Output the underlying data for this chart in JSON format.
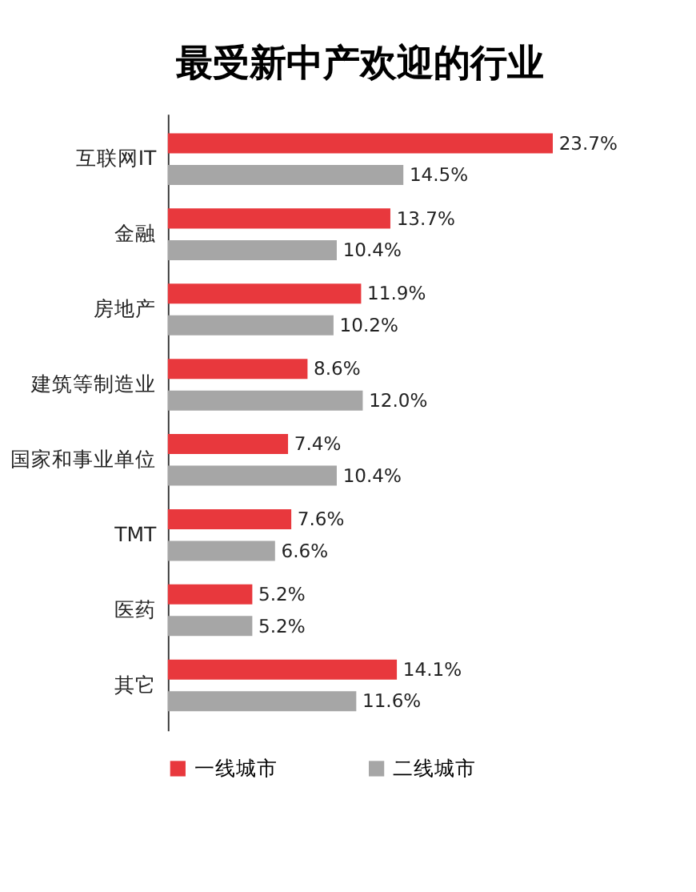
{
  "chart_data": {
    "type": "bar",
    "orientation": "horizontal",
    "title": "最受新中产欢迎的行业",
    "categories": [
      "互联网IT",
      "金融",
      "房地产",
      "建筑等制造业",
      "国家和事业单位",
      "TMT",
      "医药",
      "其它"
    ],
    "series": [
      {
        "name": "一线城市",
        "color": "#e8383d",
        "values": [
          23.7,
          13.7,
          11.9,
          8.6,
          7.4,
          7.6,
          5.2,
          14.1
        ],
        "value_labels": [
          "23.7%",
          "13.7%",
          "11.9%",
          "8.6%",
          "7.4%",
          "7.6%",
          "5.2%",
          "14.1%"
        ]
      },
      {
        "name": "二线城市",
        "color": "#a6a6a6",
        "values": [
          14.5,
          10.4,
          10.2,
          12.0,
          10.4,
          6.6,
          5.2,
          11.6
        ],
        "value_labels": [
          "14.5%",
          "10.4%",
          "10.2%",
          "12.0%",
          "10.4%",
          "6.6%",
          "5.2%",
          "11.6%"
        ]
      }
    ],
    "legend": "bottom",
    "grid": false
  }
}
